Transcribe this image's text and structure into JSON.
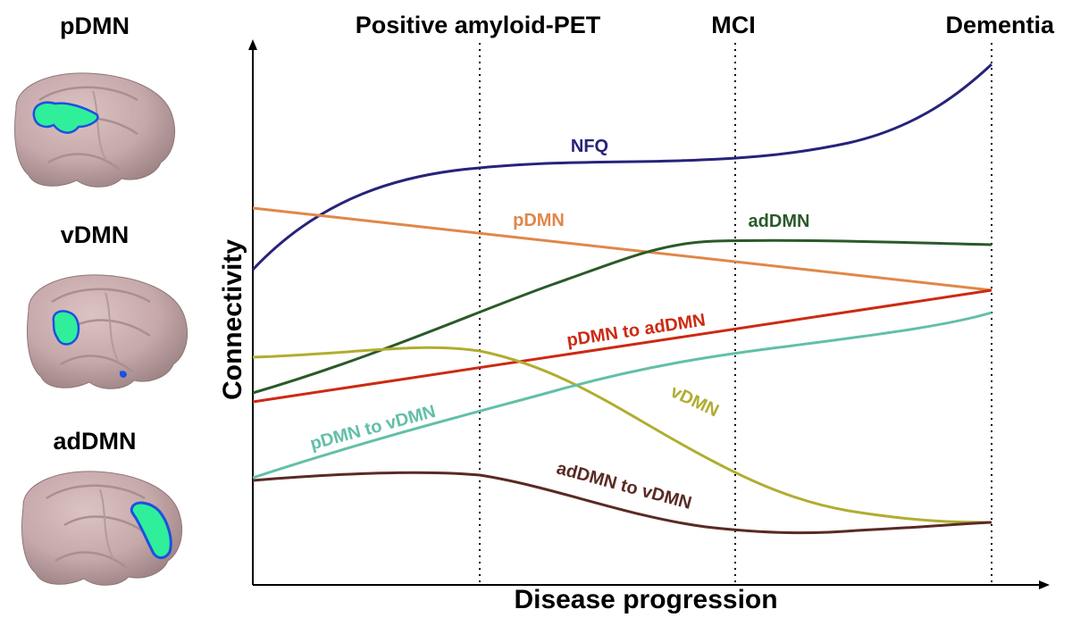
{
  "brains": [
    {
      "label": "pDMN",
      "region": "posterior-medial",
      "region_color": "#2fef9a",
      "outline_color": "#1f4fe0"
    },
    {
      "label": "vDMN",
      "region": "ventral-medial",
      "region_color": "#2fef9a",
      "outline_color": "#1f4fe0"
    },
    {
      "label": "adDMN",
      "region": "anterior-medial",
      "region_color": "#2fef9a",
      "outline_color": "#1f4fe0"
    }
  ],
  "axes": {
    "ylabel": "Connectivity",
    "xlabel": "Disease progression"
  },
  "stages": [
    "Positive amyloid-PET",
    "MCI",
    "Dementia"
  ],
  "curves": [
    {
      "label": "NFQ",
      "color": "#27237a"
    },
    {
      "label": "pDMN",
      "color": "#e0874a"
    },
    {
      "label": "adDMN",
      "color": "#2a5a2a"
    },
    {
      "label": "pDMN to adDMN",
      "color": "#cc2a12"
    },
    {
      "label": "vDMN",
      "color": "#b0ad30"
    },
    {
      "label": "pDMN to vDMN",
      "color": "#62bfa8"
    },
    {
      "label": "adDMN to vDMN",
      "color": "#5a2a24"
    }
  ],
  "colors": {
    "brain_fill": "#c9adad",
    "brain_shadow": "#a88d8e",
    "axis": "#000000"
  }
}
